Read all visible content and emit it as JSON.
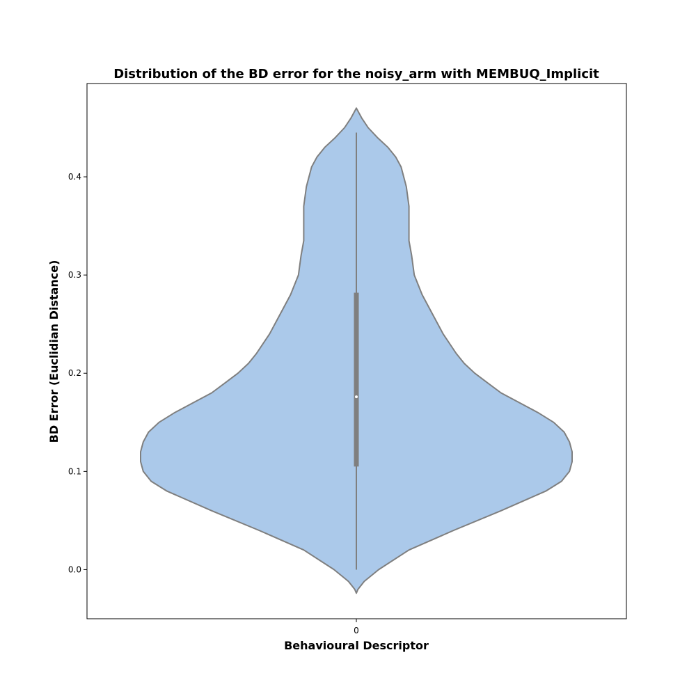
{
  "chart_data": {
    "type": "violin",
    "title": "Distribution of the BD error for the noisy_arm with MEMBUQ_Implicit",
    "xlabel": "Behavioural Descriptor",
    "ylabel": "BD Error (Euclidian Distance)",
    "categories": [
      "0"
    ],
    "ylim": [
      -0.05,
      0.495
    ],
    "yticks": [
      0.0,
      0.1,
      0.2,
      0.3,
      0.4
    ],
    "ytick_labels": [
      "0.0",
      "0.1",
      "0.2",
      "0.3",
      "0.4"
    ],
    "colors": {
      "fill": "#abc9ea",
      "edge": "#7f7f7f",
      "median": "#ffffff"
    },
    "violin": {
      "density_profile": [
        [
          -0.024,
          0.0
        ],
        [
          -0.02,
          0.006
        ],
        [
          -0.012,
          0.03
        ],
        [
          0.0,
          0.085
        ],
        [
          0.02,
          0.2
        ],
        [
          0.04,
          0.37
        ],
        [
          0.06,
          0.55
        ],
        [
          0.08,
          0.72
        ],
        [
          0.09,
          0.78
        ],
        [
          0.1,
          0.81
        ],
        [
          0.11,
          0.82
        ],
        [
          0.12,
          0.82
        ],
        [
          0.13,
          0.81
        ],
        [
          0.14,
          0.79
        ],
        [
          0.15,
          0.75
        ],
        [
          0.16,
          0.69
        ],
        [
          0.17,
          0.62
        ],
        [
          0.18,
          0.55
        ],
        [
          0.19,
          0.5
        ],
        [
          0.2,
          0.45
        ],
        [
          0.21,
          0.41
        ],
        [
          0.22,
          0.38
        ],
        [
          0.24,
          0.33
        ],
        [
          0.26,
          0.29
        ],
        [
          0.28,
          0.25
        ],
        [
          0.3,
          0.22
        ],
        [
          0.32,
          0.21
        ],
        [
          0.335,
          0.2
        ],
        [
          0.35,
          0.2
        ],
        [
          0.37,
          0.2
        ],
        [
          0.39,
          0.19
        ],
        [
          0.41,
          0.17
        ],
        [
          0.42,
          0.15
        ],
        [
          0.43,
          0.12
        ],
        [
          0.44,
          0.08
        ],
        [
          0.45,
          0.045
        ],
        [
          0.46,
          0.02
        ],
        [
          0.47,
          0.0
        ]
      ],
      "whisker_low": 0.0,
      "whisker_high": 0.445,
      "q1": 0.105,
      "q3": 0.282,
      "median": 0.176
    }
  }
}
